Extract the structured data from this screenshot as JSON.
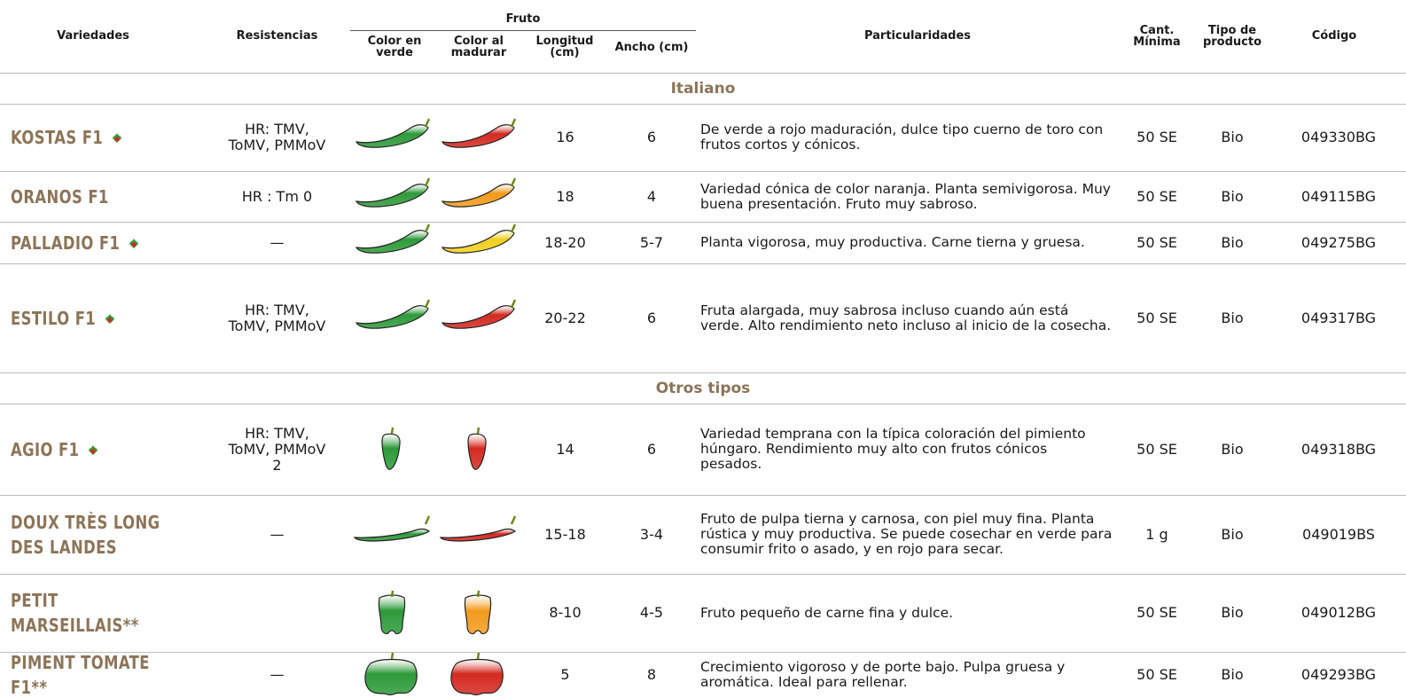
{
  "header": {
    "variedades": "Variedades",
    "resistencias": "Resistencias",
    "fruto": "Fruto",
    "color_verde": "Color en verde",
    "color_madurar": "Color al madurar",
    "longitud": "Longitud (cm)",
    "ancho": "Ancho (cm)",
    "particularidades": "Particularidades",
    "cantidad": "Cant. Mínima",
    "tipo": "Tipo de producto",
    "codigo": "Código"
  },
  "sections": [
    {
      "title": "Italiano",
      "rows": [
        {
          "variety": "KOSTAS F1",
          "resistance": "HR: TMV, ToMV, PMMoV",
          "length": "16",
          "width": "6",
          "description": "De verde a rojo maduración, dulce tipo cuerno de toro con frutos cortos y cónicos.",
          "quantity": "50 SE",
          "type": "Bio",
          "code": "049330BG"
        },
        {
          "variety": "ORANOS F1",
          "resistance": "HR : Tm 0",
          "length": "18",
          "width": "4",
          "description": "Variedad cónica de color naranja. Planta semivigorosa. Muy buena presentación. Fruto muy sabroso.",
          "quantity": "50 SE",
          "type": "Bio",
          "code": "049115BG"
        },
        {
          "variety": "PALLADIO F1",
          "resistance": "—",
          "length": "18-20",
          "width": "5-7",
          "description": "Planta vigorosa, muy productiva. Carne tierna y gruesa.",
          "quantity": "50 SE",
          "type": "Bio",
          "code": "049275BG"
        },
        {
          "variety": "ESTILO F1",
          "resistance": "HR: TMV, ToMV, PMMoV",
          "length": "20-22",
          "width": "6",
          "description": "Fruta alargada, muy sabrosa incluso cuando aún está verde. Alto rendimiento neto incluso al inicio de la cosecha.",
          "quantity": "50 SE",
          "type": "Bio",
          "code": "049317BG"
        }
      ]
    },
    {
      "title": "Otros tipos",
      "rows": [
        {
          "variety": "AGIO F1",
          "resistance": "HR: TMV, ToMV, PMMoV 2",
          "length": "14",
          "width": "6",
          "description": "Variedad temprana con la típica coloración del pimiento húngaro. Rendimiento muy alto con frutos cónicos pesados.",
          "quantity": "50 SE",
          "type": "Bio",
          "code": "049318BG"
        },
        {
          "variety": "DOUX TRÈS LONG DES LANDES",
          "resistance": "—",
          "length": "15-18",
          "width": "3-4",
          "description": "Fruto de pulpa tierna y carnosa, con piel muy fina. Planta rústica y muy productiva. Se puede cosechar en verde para consumir frito o asado, y en rojo para secar.",
          "quantity": "1 g",
          "type": "Bio",
          "code": "049019BS"
        },
        {
          "variety": "PETIT MARSEILLAIS**",
          "resistance": "",
          "length": "8-10",
          "width": "4-5",
          "description": "Fruto pequeño de carne fina y dulce.",
          "quantity": "50 SE",
          "type": "Bio",
          "code": "049012BG"
        },
        {
          "variety": "PIMENT TOMATE F1**",
          "resistance": "—",
          "length": "5",
          "width": "8",
          "description": "Crecimiento vigoroso y de porte bajo. Pulpa gruesa y aromática. Ideal para rellenar.",
          "quantity": "50 SE",
          "type": "Bio",
          "code": "049293BG"
        }
      ]
    }
  ]
}
